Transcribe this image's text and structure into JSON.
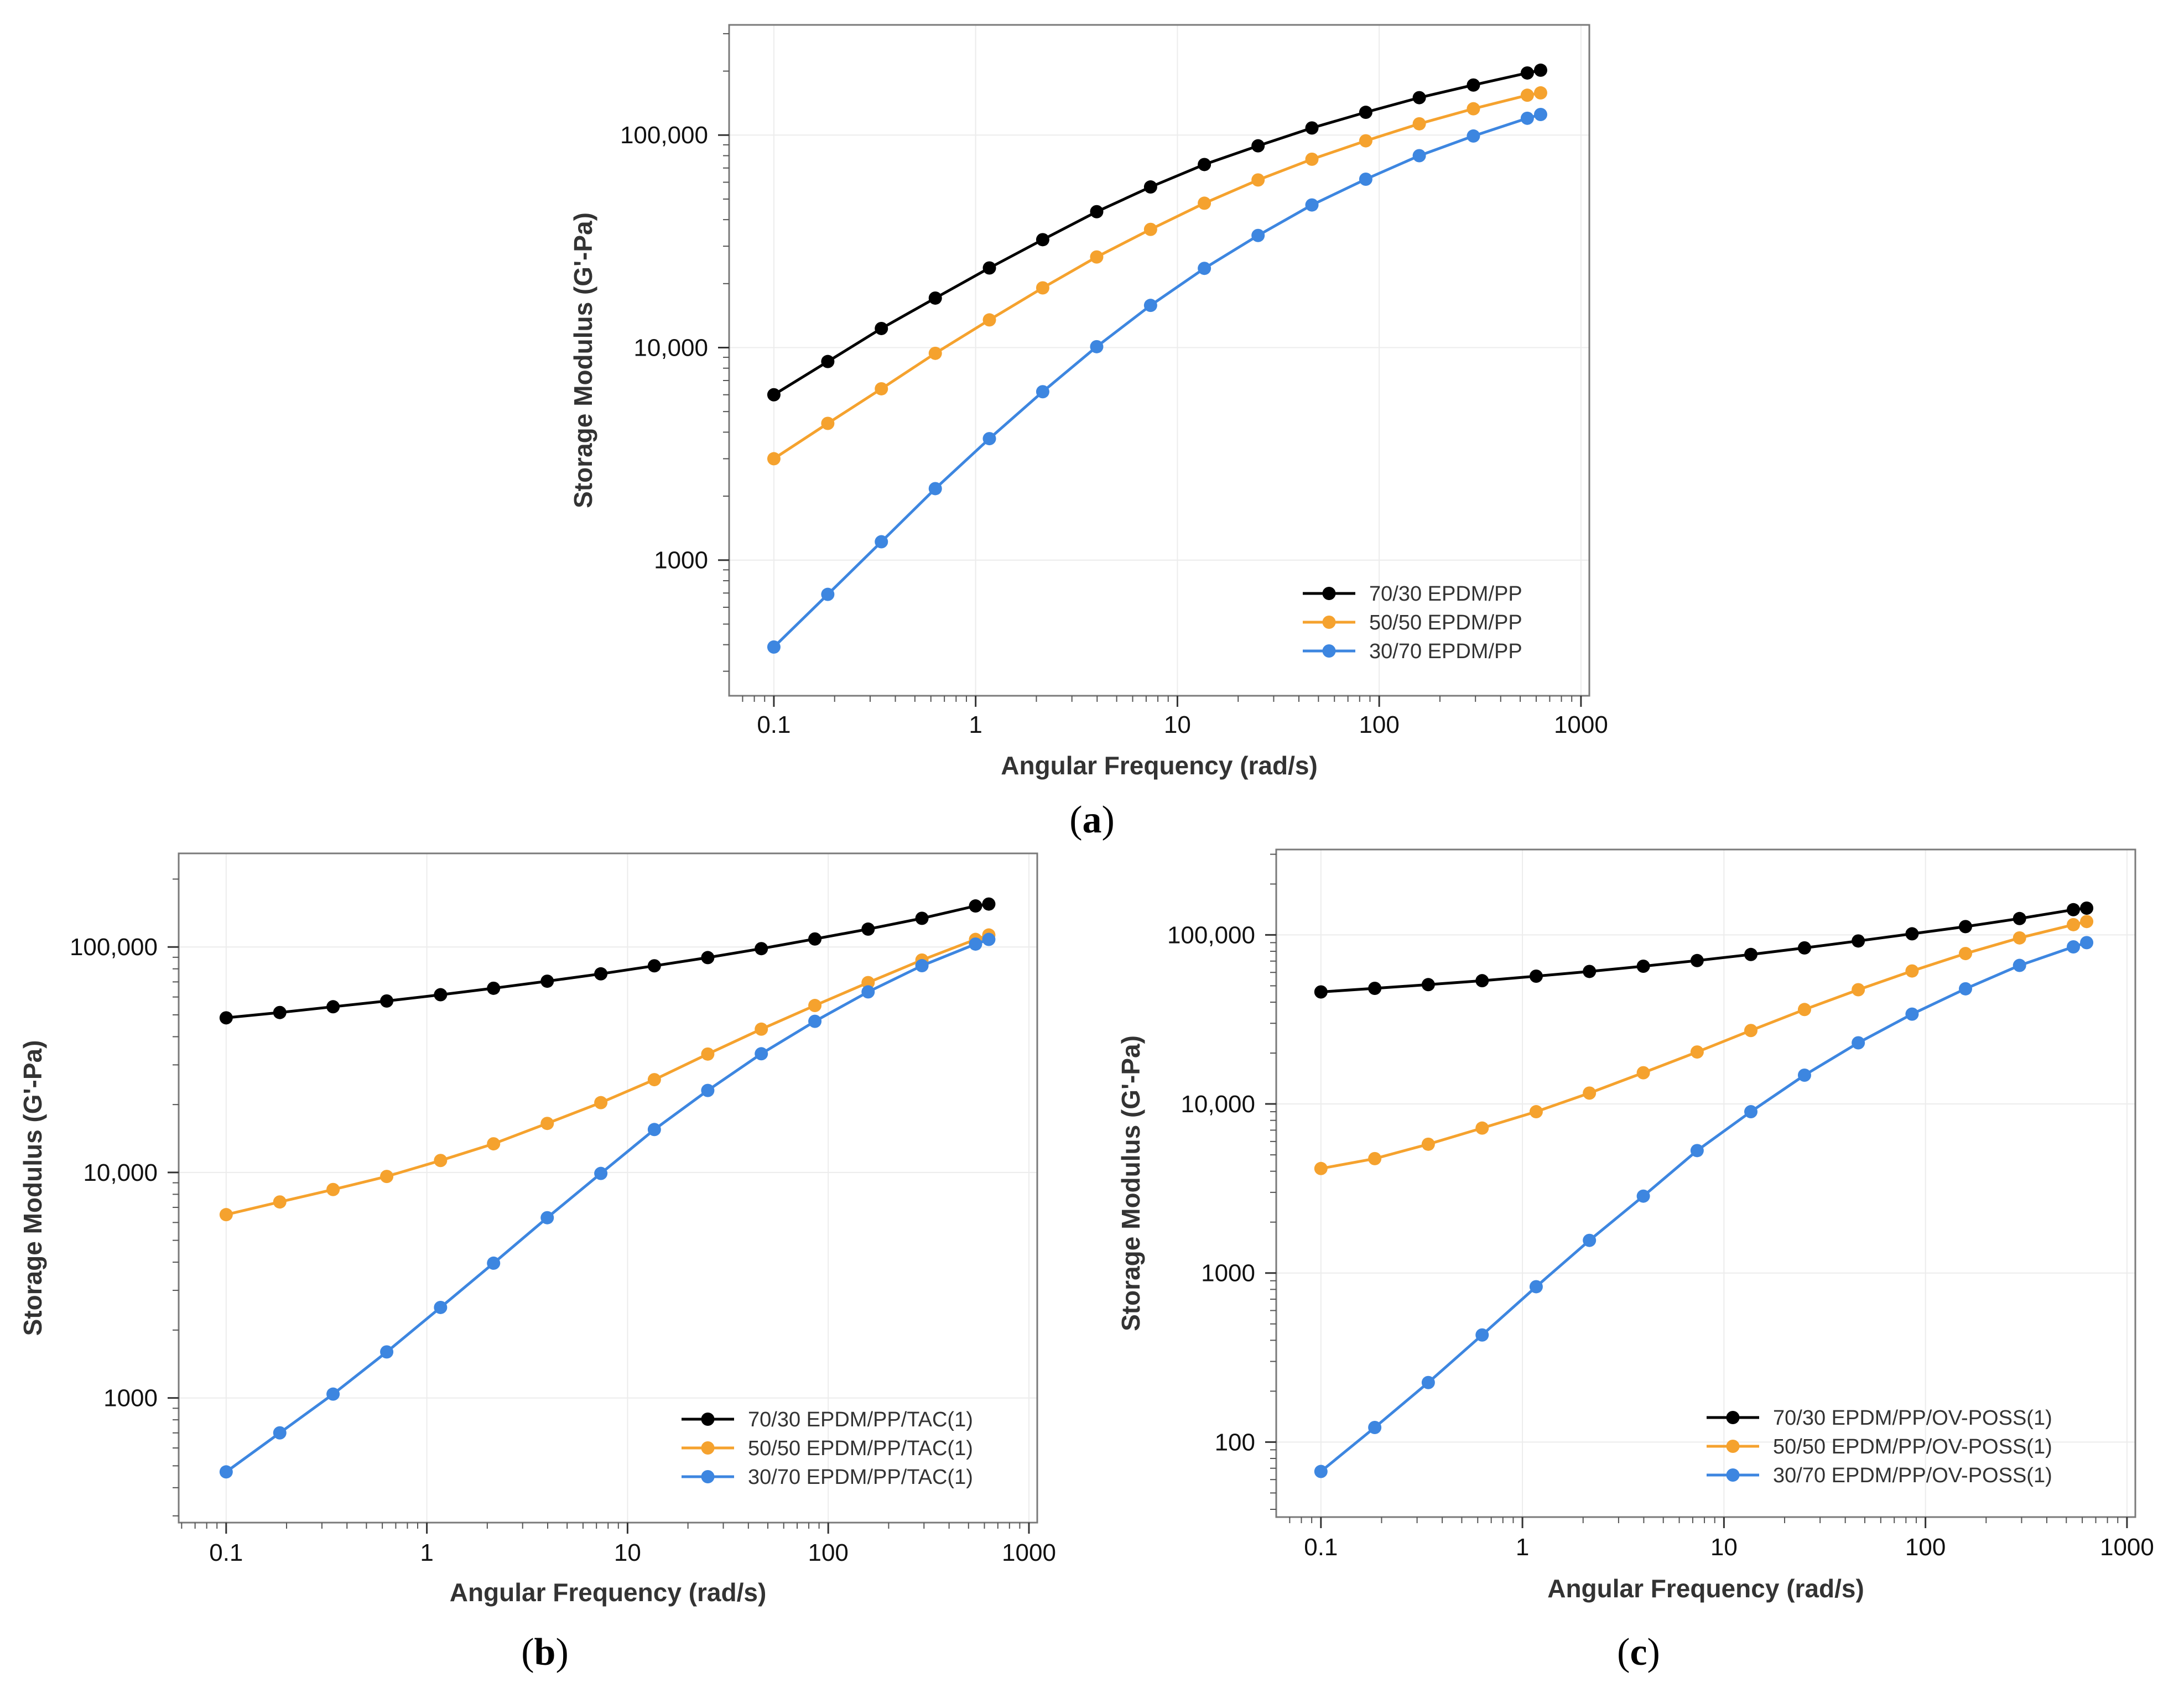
{
  "chart_data": [
    {
      "panel": "a",
      "type": "line",
      "xscale": "log",
      "yscale": "log",
      "xlabel": "Angular Frequency (rad/s)",
      "ylabel": "Storage Modulus (G'-Pa)",
      "xlim": [
        0.06,
        1100
      ],
      "ylim": [
        230,
        330000
      ],
      "xticks": [
        0.1,
        1,
        10,
        100,
        1000
      ],
      "xtick_labels": [
        "0.1",
        "1",
        "10",
        "100",
        "1000"
      ],
      "yticks": [
        1000,
        10000,
        100000
      ],
      "ytick_labels": [
        "1000",
        "10,000",
        "100,000"
      ],
      "grid": true,
      "legend_position": "bottom-right",
      "x": [
        0.1,
        0.185,
        0.341,
        0.631,
        1.17,
        2.15,
        3.98,
        7.36,
        13.6,
        25.1,
        46.4,
        85.8,
        158,
        293,
        542,
        631
      ],
      "series": [
        {
          "name": "70/30 EPDM/PP",
          "color": "#000000",
          "values": [
            6000,
            8600,
            12300,
            17100,
            23700,
            32200,
            43600,
            57000,
            72700,
            89000,
            108000,
            128000,
            150000,
            172000,
            196000,
            202000
          ]
        },
        {
          "name": "50/50 EPDM/PP",
          "color": "#F5A22E",
          "values": [
            3000,
            4400,
            6400,
            9400,
            13500,
            19100,
            26700,
            36000,
            47800,
            61500,
            77000,
            94000,
            113000,
            133000,
            154000,
            158000
          ]
        },
        {
          "name": "30/70 EPDM/PP",
          "color": "#3D86E0",
          "values": [
            390,
            690,
            1220,
            2170,
            3730,
            6200,
            10100,
            15800,
            23600,
            33700,
            46900,
            62000,
            80000,
            99000,
            120000,
            125000
          ]
        }
      ]
    },
    {
      "panel": "b",
      "type": "line",
      "xscale": "log",
      "yscale": "log",
      "xlabel": "Angular Frequency (rad/s)",
      "ylabel": "Storage Modulus (G'-Pa)",
      "xlim": [
        0.058,
        1100
      ],
      "ylim": [
        280,
        260000
      ],
      "xticks": [
        0.1,
        1,
        10,
        100,
        1000
      ],
      "xtick_labels": [
        "0.1",
        "1",
        "10",
        "100",
        "1000"
      ],
      "yticks": [
        1000,
        10000,
        100000
      ],
      "ytick_labels": [
        "1000",
        "10,000",
        "100,000"
      ],
      "grid": true,
      "legend_position": "bottom-right",
      "x": [
        0.1,
        0.185,
        0.341,
        0.631,
        1.17,
        2.15,
        3.98,
        7.36,
        13.6,
        25.1,
        46.4,
        85.8,
        158,
        293,
        542,
        631
      ],
      "series": [
        {
          "name": "70/30 EPDM/PP/TAC(1)",
          "color": "#000000",
          "values": [
            48500,
            51200,
            54300,
            57600,
            61400,
            65600,
            70500,
            76000,
            82500,
            89700,
            98300,
            108500,
            120000,
            134000,
            152000,
            155000
          ]
        },
        {
          "name": "50/50 EPDM/PP/TAC(1)",
          "color": "#F5A22E",
          "values": [
            6500,
            7400,
            8400,
            9600,
            11300,
            13400,
            16500,
            20400,
            25800,
            33500,
            43200,
            55000,
            69500,
            87500,
            108000,
            113000
          ]
        },
        {
          "name": "30/70 EPDM/PP/TAC(1)",
          "color": "#3D86E0",
          "values": [
            470,
            700,
            1040,
            1600,
            2520,
            3960,
            6300,
            9900,
            15500,
            23100,
            33600,
            46800,
            63200,
            82600,
            103000,
            108000
          ]
        }
      ]
    },
    {
      "panel": "c",
      "type": "line",
      "xscale": "log",
      "yscale": "log",
      "xlabel": "Angular Frequency (rad/s)",
      "ylabel": "Storage Modulus (G'-Pa)",
      "xlim": [
        0.06,
        1100
      ],
      "ylim": [
        36,
        320000
      ],
      "xticks": [
        0.1,
        1,
        10,
        100,
        1000
      ],
      "xtick_labels": [
        "0.1",
        "1",
        "10",
        "100",
        "1000"
      ],
      "yticks": [
        100,
        1000,
        10000,
        100000
      ],
      "ytick_labels": [
        "100",
        "1000",
        "10,000",
        "100,000"
      ],
      "grid": true,
      "legend_position": "bottom-right",
      "x": [
        0.1,
        0.185,
        0.341,
        0.631,
        1.17,
        2.15,
        3.98,
        7.36,
        13.6,
        25.1,
        46.4,
        85.8,
        158,
        293,
        542,
        631
      ],
      "series": [
        {
          "name": "70/30 EPDM/PP/OV-POSS(1)",
          "color": "#000000",
          "values": [
            46000,
            48300,
            50800,
            53600,
            57000,
            60800,
            65300,
            70500,
            76600,
            83800,
            92100,
            101500,
            112000,
            125000,
            141000,
            144000
          ]
        },
        {
          "name": "50/50 EPDM/PP/OV-POSS(1)",
          "color": "#F5A22E",
          "values": [
            4150,
            4750,
            5780,
            7200,
            9000,
            11600,
            15300,
            20300,
            27200,
            36200,
            47400,
            61200,
            77600,
            96000,
            115000,
            120000
          ]
        },
        {
          "name": "30/70 EPDM/PP/OV-POSS(1)",
          "color": "#3D86E0",
          "values": [
            67,
            122,
            225,
            430,
            830,
            1560,
            2850,
            5300,
            9000,
            14800,
            23000,
            34000,
            48000,
            66000,
            85000,
            90000
          ]
        }
      ]
    }
  ],
  "panel_labels": {
    "a": {
      "open": "(",
      "letter": "a",
      "close": ")"
    },
    "b": {
      "open": "(",
      "letter": "b",
      "close": ")"
    },
    "c": {
      "open": "(",
      "letter": "c",
      "close": ")"
    }
  }
}
